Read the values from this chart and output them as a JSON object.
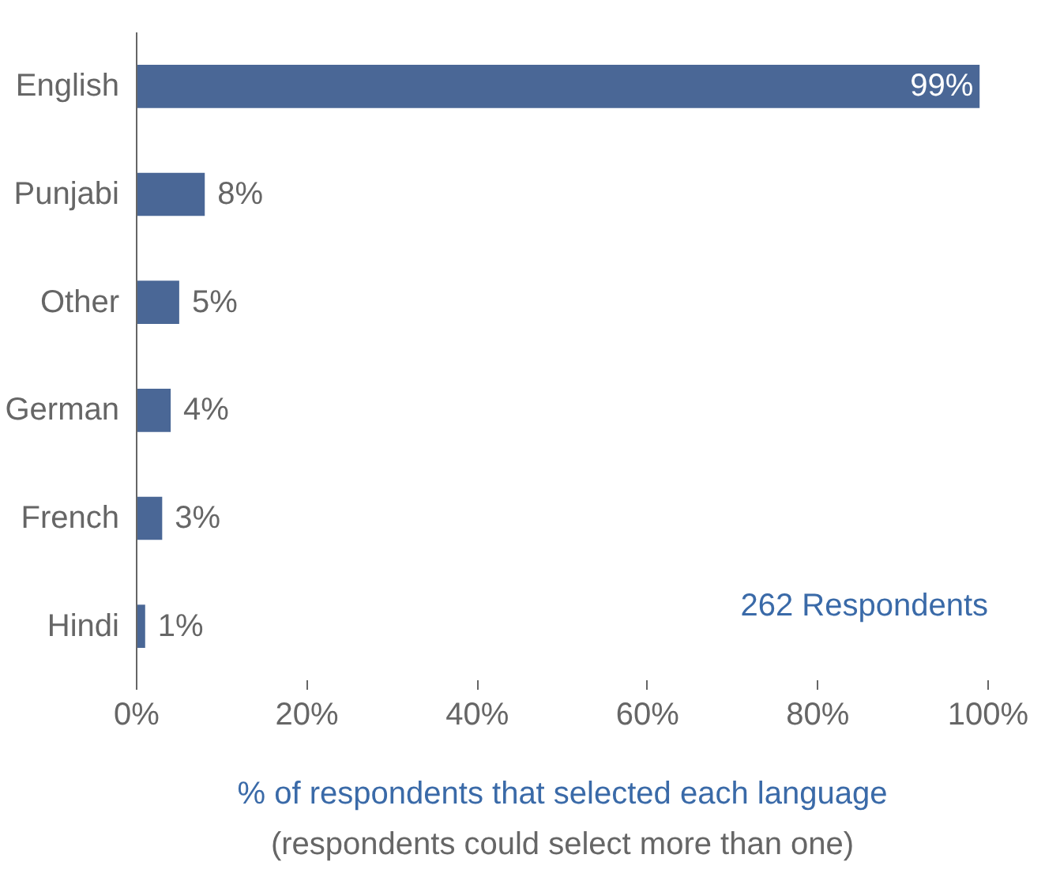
{
  "chart_data": {
    "type": "bar",
    "orientation": "horizontal",
    "categories": [
      "English",
      "Punjabi",
      "Other",
      "German",
      "French",
      "Hindi"
    ],
    "values": [
      99,
      8,
      5,
      4,
      3,
      1
    ],
    "value_labels": [
      "99%",
      "8%",
      "5%",
      "4%",
      "3%",
      "1%"
    ],
    "color": "#4a6796",
    "xlim": [
      0,
      100
    ],
    "xticks": [
      {
        "value": 0,
        "label": "0%"
      },
      {
        "value": 20,
        "label": "20%"
      },
      {
        "value": 40,
        "label": "40%"
      },
      {
        "value": 60,
        "label": "60%"
      },
      {
        "value": 80,
        "label": "80%"
      },
      {
        "value": 100,
        "label": "100%"
      }
    ],
    "xlabel": "% of respondents that selected each language",
    "annotations": [
      "262 Respondents",
      "(respondents could select more than one)"
    ],
    "grid": false
  }
}
